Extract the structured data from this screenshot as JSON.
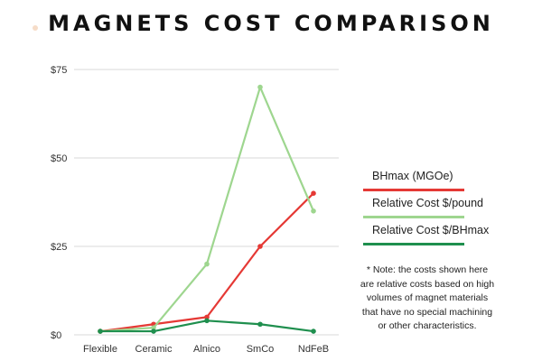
{
  "chart_data": {
    "type": "line",
    "title": "MAGNETS COST COMPARISON",
    "categories": [
      "Flexible",
      "Ceramic",
      "Alnico",
      "SmCo",
      "NdFeB"
    ],
    "y_ticks": [
      "$0",
      "$25",
      "$50",
      "$75"
    ],
    "ylim": [
      0,
      75
    ],
    "grid": true,
    "legend_position": "right",
    "series": [
      {
        "name": "BHmax (MGOe)",
        "color": "#e53935",
        "values": [
          1,
          3,
          5,
          25,
          40
        ]
      },
      {
        "name": "Relative Cost $/pound",
        "color": "#9ed68f",
        "values": [
          1,
          2,
          20,
          70,
          35
        ]
      },
      {
        "name": "Relative Cost $/BHmax",
        "color": "#1f8f4e",
        "values": [
          1,
          1,
          4,
          3,
          1
        ]
      }
    ],
    "note": "* Note: the costs shown here are relative costs based on high volumes of magnet materials that have no special machining or other characteristics."
  }
}
